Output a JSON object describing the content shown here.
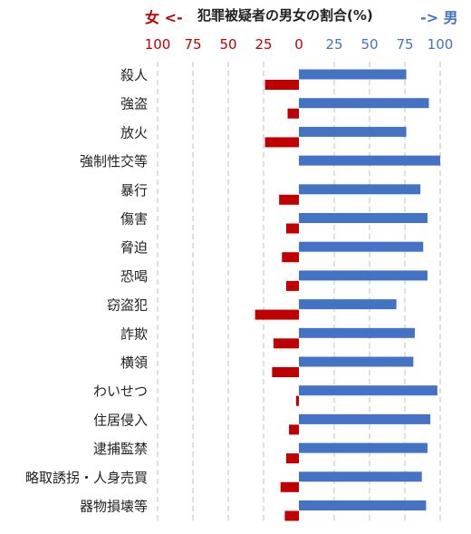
{
  "header": {
    "left": "女 <-",
    "center": "犯罪被疑者の男女の割合(%)",
    "right": "-> 男"
  },
  "colors": {
    "female": "#c00000",
    "male": "#4472c4",
    "grid": "#bfbfbf",
    "text": "#222222"
  },
  "chart_data": {
    "type": "bar",
    "orientation": "horizontal-diverging",
    "title": "犯罪被疑者の男女の割合(%)",
    "female_ticks": [
      "100",
      "75",
      "50",
      "25",
      "0"
    ],
    "male_ticks": [
      "25",
      "50",
      "75",
      "100"
    ],
    "xlim": [
      -100,
      100
    ],
    "grid": true,
    "categories": [
      "殺人",
      "強盗",
      "放火",
      "強制性交等",
      "暴行",
      "傷害",
      "脅迫",
      "恐喝",
      "窃盗犯",
      "詐欺",
      "横領",
      "わいせつ",
      "住居侵入",
      "逮捕監禁",
      "略取誘拐・人身売買",
      "器物損壊等"
    ],
    "series": [
      {
        "name": "男",
        "values": [
          76,
          92,
          76,
          100,
          86,
          91,
          88,
          91,
          69,
          82,
          81,
          98,
          93,
          91,
          87,
          90
        ]
      },
      {
        "name": "女",
        "values": [
          24,
          8,
          24,
          0,
          14,
          9,
          12,
          9,
          31,
          18,
          19,
          2,
          7,
          9,
          13,
          10
        ]
      }
    ]
  }
}
